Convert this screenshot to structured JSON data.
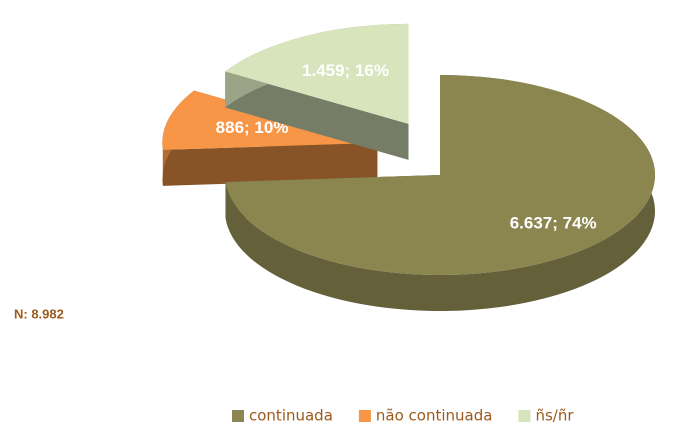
{
  "chart_data": {
    "type": "pie",
    "categories": [
      "continuada",
      "não continuada",
      "ñs/ñr"
    ],
    "values": [
      6637,
      886,
      1459
    ],
    "value_labels": [
      "6.637; 74%",
      "886; 10%",
      "1.459; 16%"
    ],
    "colors": [
      "#8b8650",
      "#f79646",
      "#d7e4bc"
    ],
    "annotation": "N: 8.982",
    "legend": "bottom"
  }
}
